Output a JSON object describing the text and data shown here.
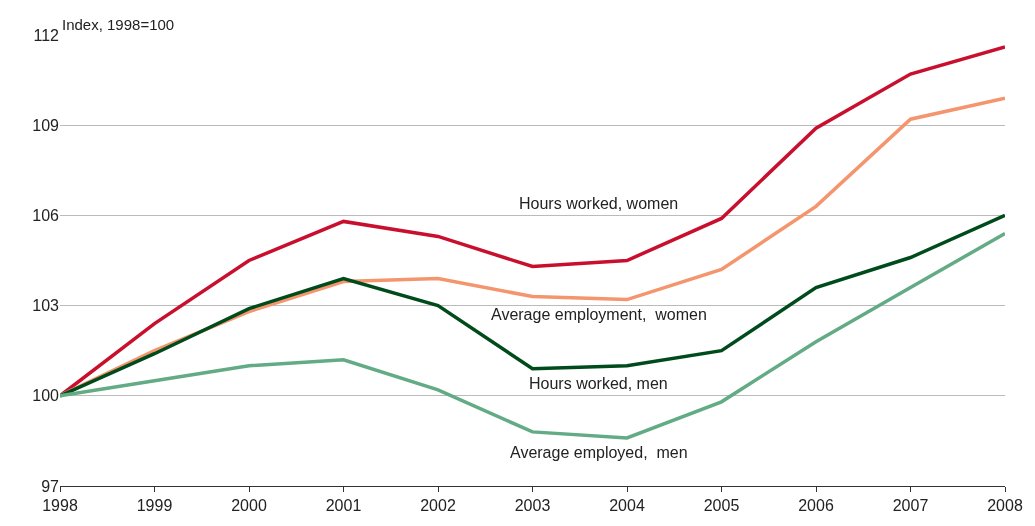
{
  "chart_data": {
    "type": "line",
    "ylabel": "Index, 1998=100",
    "categories": [
      "1998",
      "1999",
      "2000",
      "2001",
      "2002",
      "2003",
      "2004",
      "2005",
      "2006",
      "2007",
      "2008"
    ],
    "series": [
      {
        "name": "Hours worked, women",
        "color": "#c8102e",
        "values": [
          100,
          102.4,
          104.5,
          105.8,
          105.3,
          104.3,
          104.5,
          105.9,
          108.9,
          110.7,
          111.6
        ]
      },
      {
        "name": "Average employment,  women",
        "color": "#f4956e",
        "values": [
          100,
          101.5,
          102.8,
          103.8,
          103.9,
          103.3,
          103.2,
          104.2,
          106.3,
          109.2,
          109.9
        ]
      },
      {
        "name": "Hours worked, men",
        "color": "#004b1c",
        "values": [
          100,
          101.4,
          102.9,
          103.9,
          103.0,
          100.9,
          101.0,
          101.5,
          103.6,
          104.6,
          106.0
        ]
      },
      {
        "name": "Average employed,  men",
        "color": "#62ab84",
        "values": [
          100,
          100.5,
          101.0,
          101.2,
          100.2,
          98.8,
          98.6,
          99.8,
          101.8,
          103.6,
          105.4
        ]
      }
    ],
    "ylim": [
      97,
      112
    ],
    "yticks": [
      97,
      100,
      103,
      106,
      109,
      112
    ],
    "grid": "y",
    "legend": false,
    "marker": "none",
    "line_style": "solid"
  }
}
